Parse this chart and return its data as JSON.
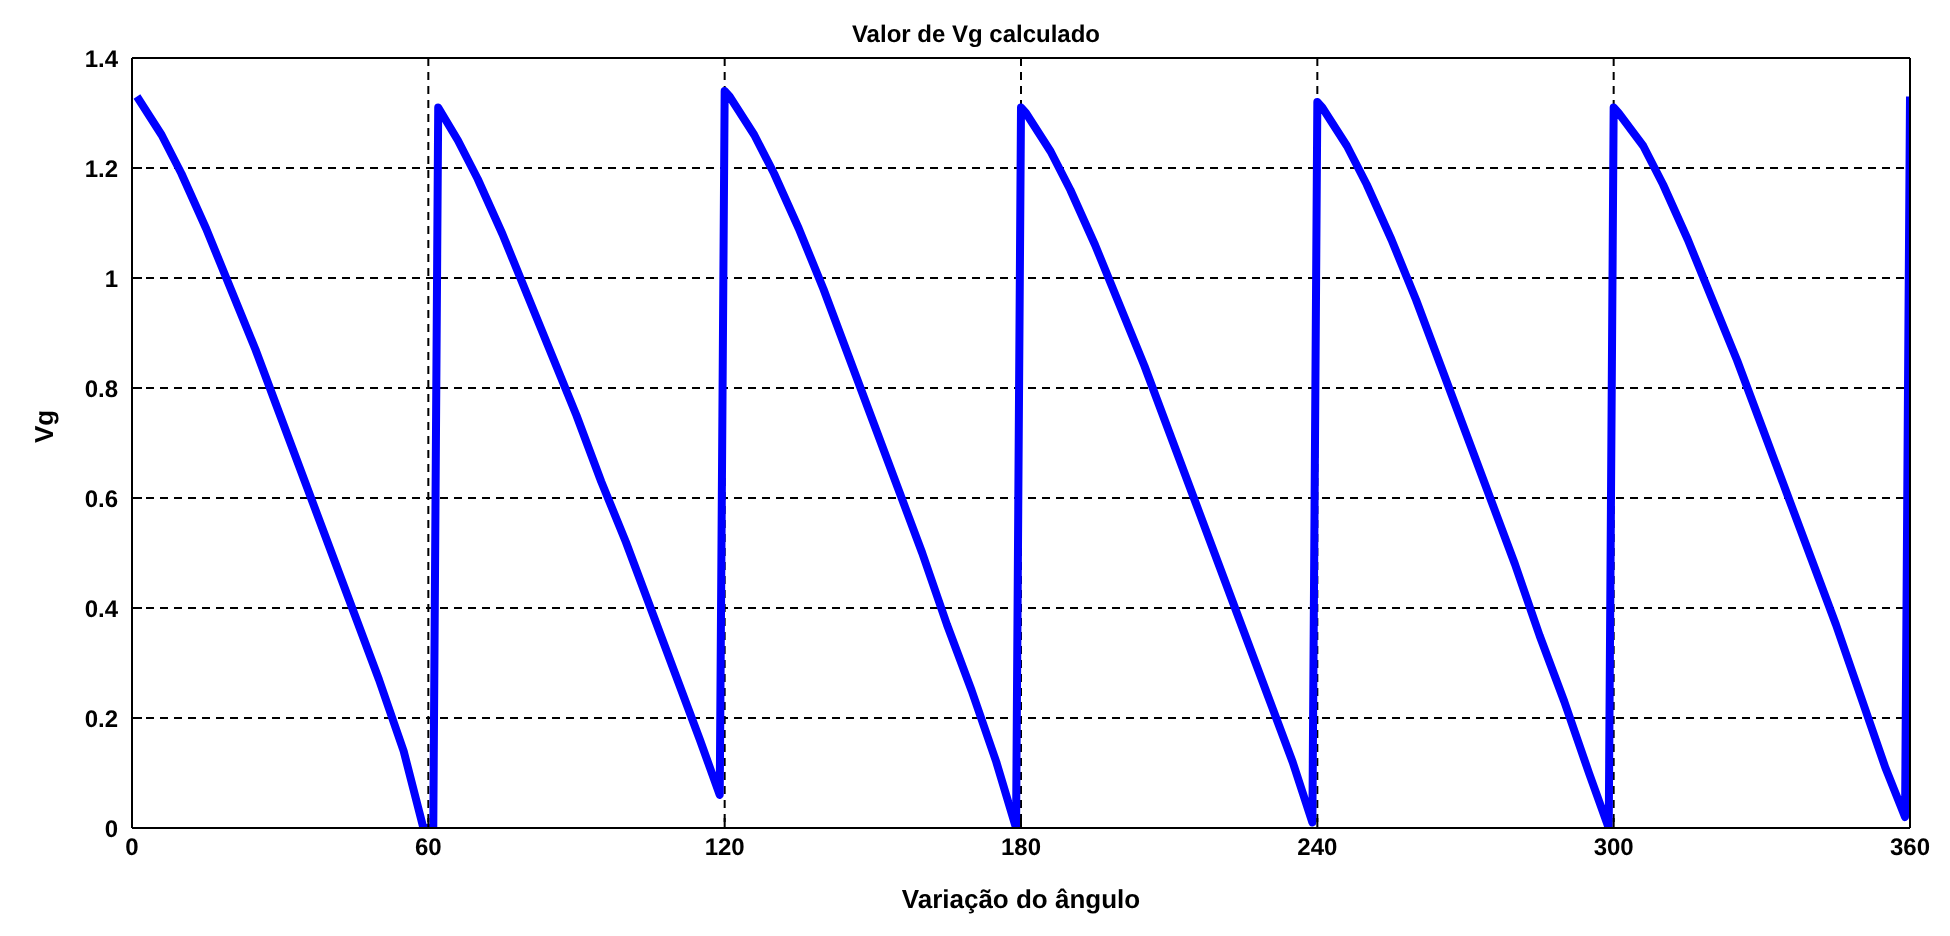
{
  "chart_data": {
    "type": "line",
    "title": "Valor de Vg calculado",
    "xlabel": "Variação do ângulo",
    "ylabel": "Vg",
    "x": [
      1,
      6,
      10,
      15,
      20,
      25,
      30,
      35,
      40,
      45,
      50,
      55,
      59,
      61,
      62,
      66,
      70,
      75,
      80,
      85,
      90,
      95,
      100,
      105,
      110,
      115,
      119,
      120,
      121,
      126,
      130,
      135,
      140,
      145,
      150,
      155,
      160,
      165,
      170,
      175,
      179,
      180,
      181,
      186,
      190,
      195,
      200,
      205,
      210,
      215,
      220,
      225,
      230,
      235,
      239,
      240,
      241,
      246,
      250,
      255,
      260,
      265,
      270,
      275,
      280,
      285,
      290,
      295,
      299,
      300,
      301,
      306,
      310,
      315,
      320,
      325,
      330,
      335,
      340,
      345,
      350,
      355,
      359,
      360
    ],
    "series": [
      {
        "color": "#0000ff",
        "values": [
          1.33,
          1.26,
          1.19,
          1.09,
          0.98,
          0.87,
          0.75,
          0.63,
          0.51,
          0.39,
          0.27,
          0.14,
          0.0,
          0.0,
          1.31,
          1.25,
          1.18,
          1.08,
          0.97,
          0.86,
          0.75,
          0.63,
          0.52,
          0.4,
          0.28,
          0.16,
          0.06,
          1.34,
          1.33,
          1.26,
          1.19,
          1.09,
          0.98,
          0.86,
          0.74,
          0.62,
          0.5,
          0.37,
          0.25,
          0.12,
          0.0,
          1.31,
          1.3,
          1.23,
          1.16,
          1.06,
          0.95,
          0.84,
          0.72,
          0.6,
          0.48,
          0.36,
          0.24,
          0.12,
          0.01,
          1.32,
          1.31,
          1.24,
          1.17,
          1.07,
          0.96,
          0.84,
          0.72,
          0.6,
          0.48,
          0.35,
          0.23,
          0.1,
          0.0,
          1.31,
          1.3,
          1.24,
          1.17,
          1.07,
          0.96,
          0.85,
          0.73,
          0.61,
          0.49,
          0.37,
          0.24,
          0.11,
          0.02,
          1.33
        ]
      }
    ],
    "xlim": [
      0,
      360
    ],
    "xticks": [
      0,
      60,
      120,
      180,
      240,
      300,
      360
    ],
    "ylim": [
      0,
      1.4
    ],
    "yticks": [
      0,
      0.2,
      0.4,
      0.6,
      0.8,
      1,
      1.2,
      1.4
    ],
    "grid": true,
    "marker": "none",
    "line_style": "solid",
    "legend": false
  }
}
